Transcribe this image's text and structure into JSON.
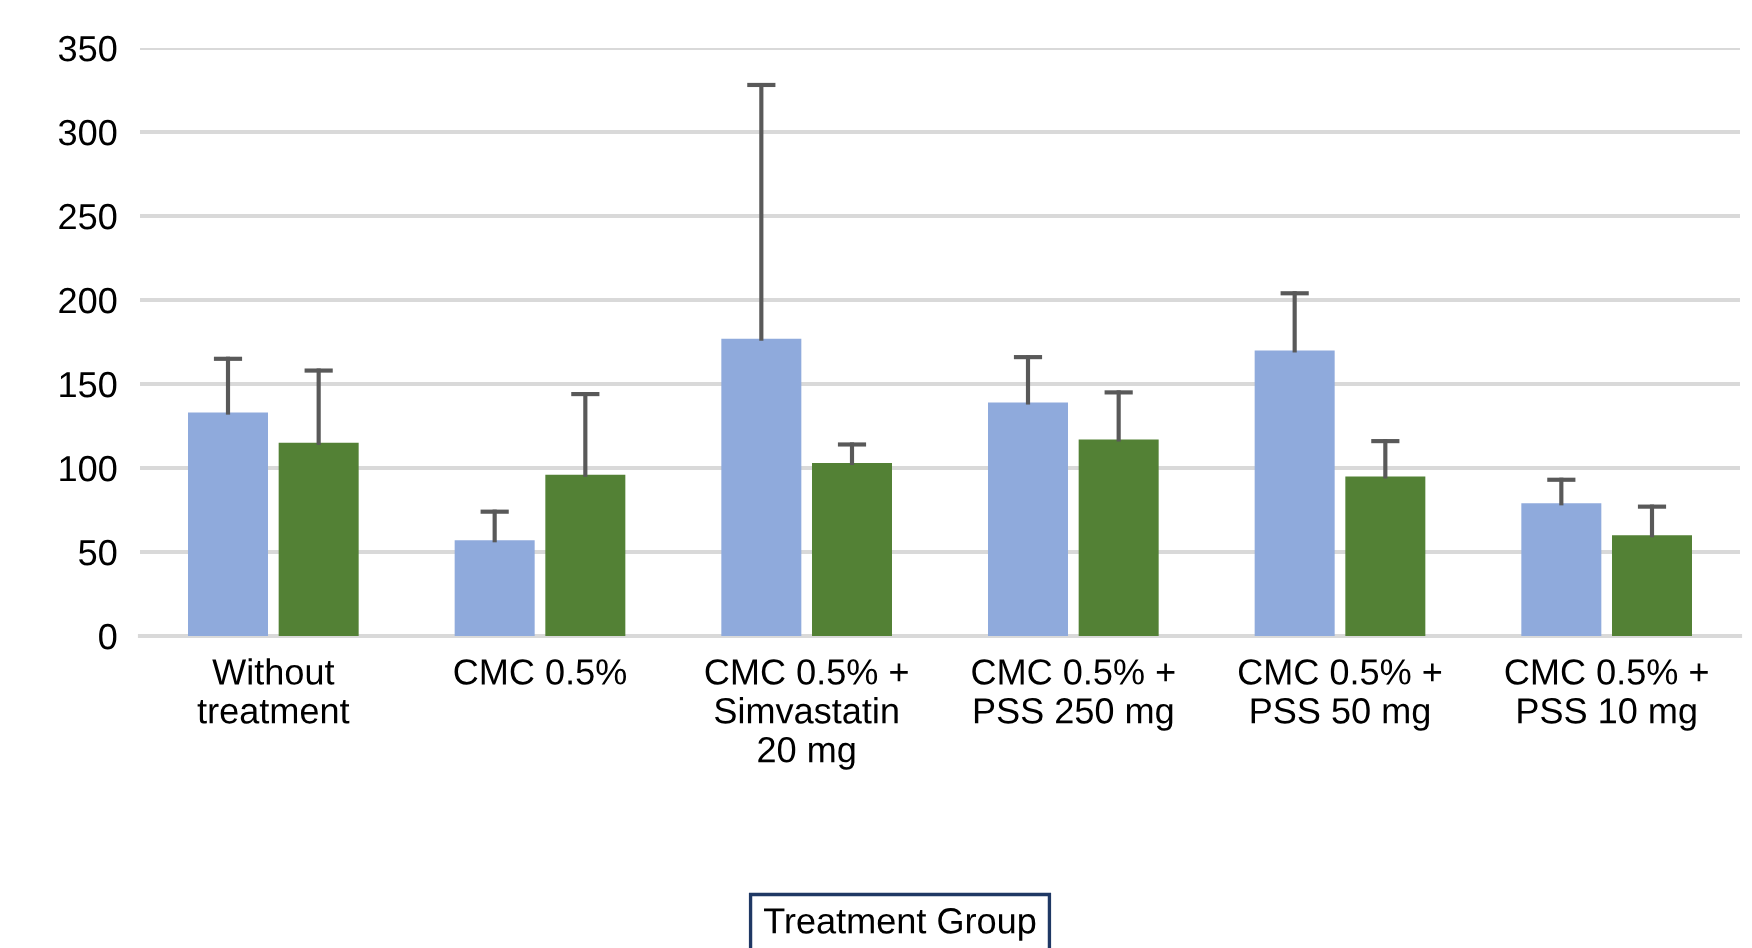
{
  "chart_data": {
    "type": "bar",
    "xlabel": "Treatment Group",
    "categories": [
      "Without\ntreatment",
      "CMC 0.5%",
      "CMC 0.5% +\nSimvastatin\n20 mg",
      "CMC 0.5% +\nPSS 250 mg",
      "CMC 0.5% +\nPSS 50 mg",
      "CMC 0.5% +\nPSS 10 mg"
    ],
    "series": [
      {
        "color": "#8faadc",
        "values": [
          133,
          57,
          177,
          139,
          170,
          79
        ],
        "errors": [
          [
            133,
            165
          ],
          [
            57,
            74
          ],
          [
            177,
            328
          ],
          [
            139,
            166
          ],
          [
            170,
            204
          ],
          [
            79,
            93
          ]
        ]
      },
      {
        "color": "#538135",
        "values": [
          115,
          96,
          103,
          117,
          95,
          60
        ],
        "errors": [
          [
            115,
            158
          ],
          [
            96,
            144
          ],
          [
            103,
            114
          ],
          [
            117,
            145
          ],
          [
            95,
            116
          ],
          [
            60,
            77
          ]
        ]
      }
    ],
    "ylim": [
      0,
      350
    ],
    "yticks": [
      0,
      50,
      100,
      150,
      200,
      250,
      300,
      350
    ],
    "grid": "y",
    "legend": false
  }
}
